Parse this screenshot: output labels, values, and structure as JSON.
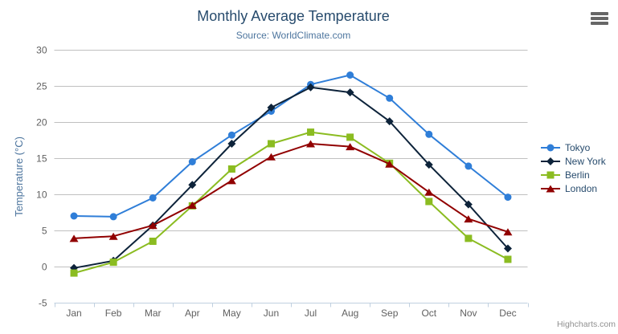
{
  "chart": {
    "title": "Monthly Average Temperature",
    "subtitle": "Source: WorldClimate.com",
    "credits": "Highcharts.com",
    "export_icon": "hamburger-menu-icon"
  },
  "chart_data": {
    "type": "line",
    "title": "Monthly Average Temperature",
    "subtitle": "Source: WorldClimate.com",
    "categories": [
      "Jan",
      "Feb",
      "Mar",
      "Apr",
      "May",
      "Jun",
      "Jul",
      "Aug",
      "Sep",
      "Oct",
      "Nov",
      "Dec"
    ],
    "xlabel": "",
    "ylabel": "Temperature (°C)",
    "ylim": [
      -5,
      30
    ],
    "ytick_interval": 5,
    "yticks": [
      -5,
      0,
      5,
      10,
      15,
      20,
      25,
      30
    ],
    "grid": true,
    "legend_position": "right",
    "series": [
      {
        "name": "Tokyo",
        "color": "#2f7ed8",
        "marker": "circle",
        "values": [
          7.0,
          6.9,
          9.5,
          14.5,
          18.2,
          21.5,
          25.2,
          26.5,
          23.3,
          18.3,
          13.9,
          9.6
        ]
      },
      {
        "name": "New York",
        "color": "#0d233a",
        "marker": "diamond",
        "values": [
          -0.2,
          0.8,
          5.7,
          11.3,
          17.0,
          22.0,
          24.8,
          24.1,
          20.1,
          14.1,
          8.6,
          2.5
        ]
      },
      {
        "name": "Berlin",
        "color": "#8bbc21",
        "marker": "square",
        "values": [
          -0.9,
          0.6,
          3.5,
          8.4,
          13.5,
          17.0,
          18.6,
          17.9,
          14.3,
          9.0,
          3.9,
          1.0
        ]
      },
      {
        "name": "London",
        "color": "#910000",
        "marker": "triangle",
        "values": [
          3.9,
          4.2,
          5.7,
          8.5,
          11.9,
          15.2,
          17.0,
          16.6,
          14.2,
          10.3,
          6.6,
          4.8
        ]
      }
    ]
  },
  "colors": {
    "title": "#274b6d",
    "subtitle": "#4d759e",
    "axis_title": "#4d759e",
    "axis_label": "#606060",
    "gridline": "#c0c0c0",
    "axis_line": "#c0d0e0",
    "legend_text": "#274b6d",
    "credits": "#909090",
    "export_icon": "#666666"
  }
}
